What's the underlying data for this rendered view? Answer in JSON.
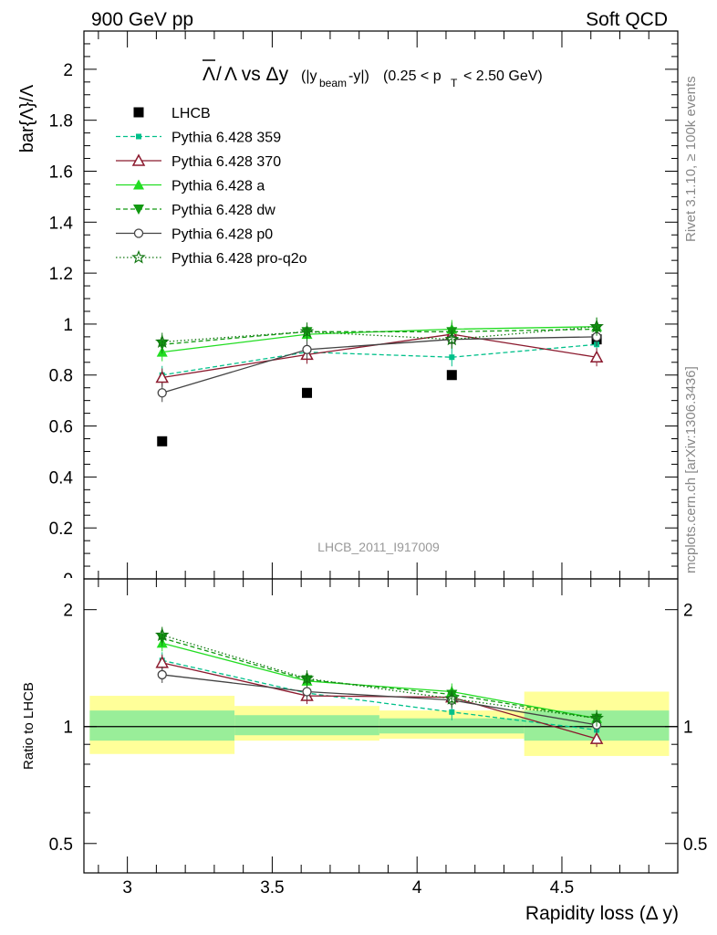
{
  "header": {
    "left": "900 GeV pp",
    "right": "Soft QCD"
  },
  "side_labels": {
    "rivet": "Rivet 3.1.10, ≥ 100k events",
    "mcplots": "mcplots.cern.ch [arXiv:1306.3436]"
  },
  "chart_data": [
    {
      "type": "scatter",
      "title_parts": {
        "main": "Λ/Λ vs Δy",
        "bar_glyph": "Λ",
        "rest": "Λ vs Δy",
        "paren_open": "(|y",
        "beam_sub": "beam",
        "paren_mid": "-y|)",
        "pt_pre": "(0.25 < p",
        "pt_sub": "T",
        "pt_post": "< 2.50 GeV)"
      },
      "ylabel": "bar{Λ}/Λ",
      "watermark": "LHCB_2011_I917009",
      "xlim": [
        2.85,
        4.9
      ],
      "ylim": [
        0,
        2.15
      ],
      "ytick_labels": [
        "0.2",
        "0.4",
        "0.6",
        "0.8",
        "1",
        "1.2",
        "1.4",
        "1.6",
        "1.8",
        "2"
      ],
      "yticks": [
        0.2,
        0.4,
        0.6,
        0.8,
        1.0,
        1.2,
        1.4,
        1.6,
        1.8,
        2.0
      ],
      "partial_tick_label": "0",
      "legend_position": "top-left",
      "x": [
        3.12,
        3.62,
        4.12,
        4.62
      ],
      "series": [
        {
          "name": "LHCB",
          "values": [
            0.54,
            0.73,
            0.8,
            0.94
          ],
          "color": "#000000",
          "marker": "square",
          "line": "none"
        },
        {
          "name": "Pythia 6.428 359",
          "values": [
            0.8,
            0.89,
            0.87,
            0.92
          ],
          "color": "#00c08a",
          "marker": "small-square",
          "line": "dashed"
        },
        {
          "name": "Pythia 6.428 370",
          "values": [
            0.79,
            0.88,
            0.96,
            0.87
          ],
          "color": "#8b1a2e",
          "marker": "open-triangle",
          "line": "solid"
        },
        {
          "name": "Pythia 6.428 a",
          "values": [
            0.89,
            0.96,
            0.98,
            0.99
          ],
          "color": "#22dd22",
          "marker": "triangle",
          "line": "solid"
        },
        {
          "name": "Pythia 6.428 dw",
          "values": [
            0.92,
            0.97,
            0.97,
            0.98
          ],
          "color": "#119911",
          "marker": "triangle-down",
          "line": "dashed"
        },
        {
          "name": "Pythia 6.428 p0",
          "values": [
            0.73,
            0.9,
            0.94,
            0.95
          ],
          "color": "#444444",
          "marker": "open-circle",
          "line": "solid"
        },
        {
          "name": "Pythia 6.428 pro-q2o",
          "values": [
            0.93,
            0.97,
            0.94,
            0.99
          ],
          "color": "#117711",
          "marker": "star",
          "line": "dotted"
        }
      ]
    },
    {
      "type": "scatter",
      "xlabel": "Rapidity loss (Δ y)",
      "ylabel": "Ratio to LHCB",
      "log_scale_y": true,
      "ylim": [
        0.42,
        2.4
      ],
      "yticks": [
        0.5,
        1,
        2
      ],
      "ytick_labels": [
        "0.5",
        "1",
        "2"
      ],
      "xticks": [
        3,
        3.5,
        4,
        4.5
      ],
      "xtick_labels": [
        "3",
        "3.5",
        "4",
        "4.5"
      ],
      "xlim": [
        2.85,
        4.9
      ],
      "reference_line": 1,
      "bands": [
        {
          "x": [
            2.87,
            3.37
          ],
          "green": [
            0.92,
            1.1
          ],
          "yellow": [
            0.85,
            1.2
          ]
        },
        {
          "x": [
            3.37,
            3.87
          ],
          "green": [
            0.95,
            1.07
          ],
          "yellow": [
            0.92,
            1.13
          ]
        },
        {
          "x": [
            3.87,
            4.37
          ],
          "green": [
            0.96,
            1.05
          ],
          "yellow": [
            0.93,
            1.1
          ]
        },
        {
          "x": [
            4.37,
            4.87
          ],
          "green": [
            0.92,
            1.1
          ],
          "yellow": [
            0.84,
            1.23
          ]
        }
      ],
      "x": [
        3.12,
        3.62,
        4.12,
        4.62
      ],
      "series": [
        {
          "name": "Pythia 6.428 359",
          "values": [
            1.48,
            1.22,
            1.09,
            0.98
          ]
        },
        {
          "name": "Pythia 6.428 370",
          "values": [
            1.46,
            1.2,
            1.19,
            0.93
          ]
        },
        {
          "name": "Pythia 6.428 a",
          "values": [
            1.64,
            1.31,
            1.23,
            1.05
          ]
        },
        {
          "name": "Pythia 6.428 dw",
          "values": [
            1.69,
            1.32,
            1.21,
            1.05
          ]
        },
        {
          "name": "Pythia 6.428 p0",
          "values": [
            1.36,
            1.23,
            1.17,
            1.01
          ]
        },
        {
          "name": "Pythia 6.428 pro-q2o",
          "values": [
            1.72,
            1.33,
            1.18,
            1.05
          ]
        }
      ]
    }
  ]
}
